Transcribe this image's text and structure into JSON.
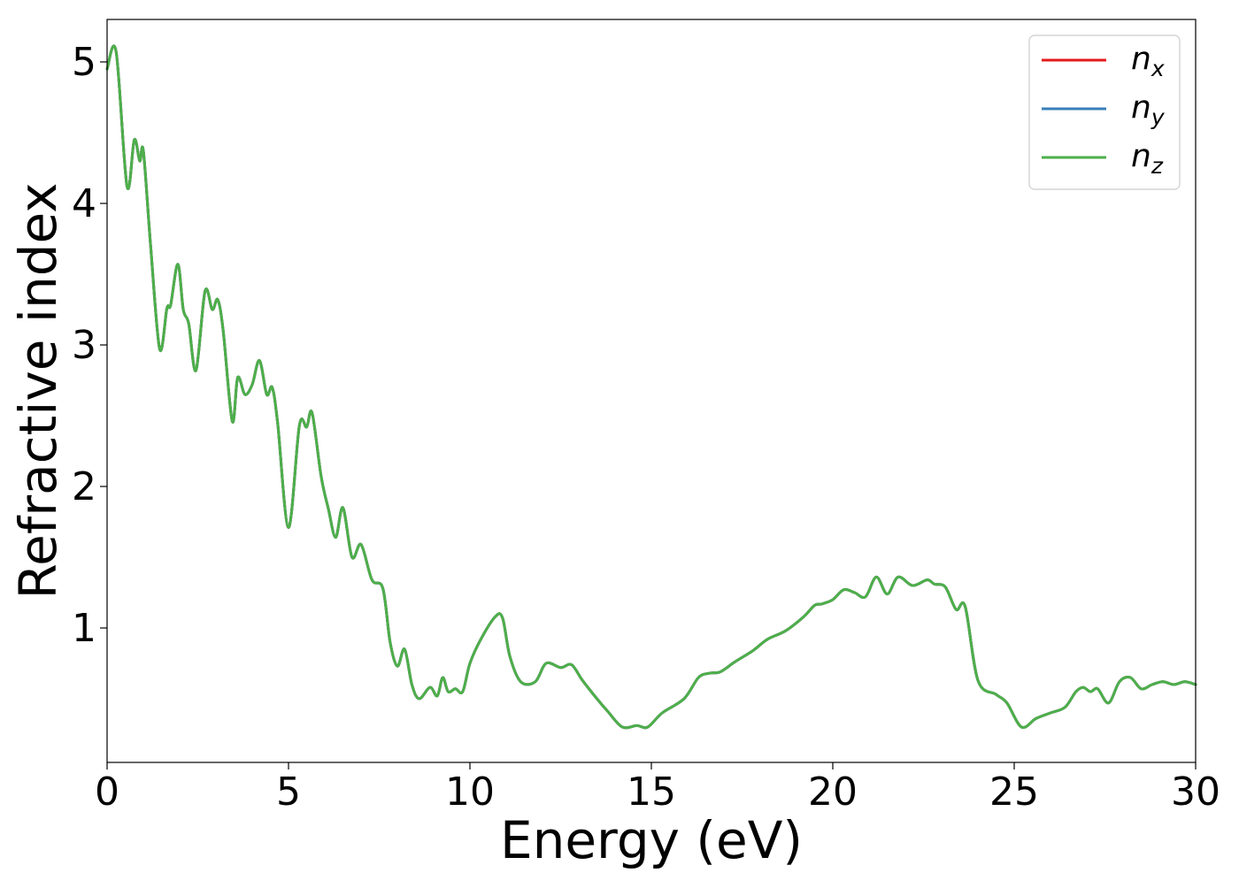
{
  "chart_data": {
    "type": "line",
    "title": "",
    "xlabel": "Energy (eV)",
    "ylabel": "Refractive index",
    "xlim": [
      0,
      30
    ],
    "ylim": [
      0.05,
      5.3
    ],
    "xticks": [
      0,
      5,
      10,
      15,
      20,
      25,
      30
    ],
    "xtick_labels": [
      "0",
      "5",
      "10",
      "15",
      "20",
      "25",
      "30"
    ],
    "yticks": [
      1,
      2,
      3,
      4,
      5
    ],
    "ytick_labels": [
      "1",
      "2",
      "3",
      "4",
      "5"
    ],
    "grid": false,
    "legend_position": "top-right",
    "x": [
      0,
      0.25,
      0.55,
      0.75,
      0.9,
      1.0,
      1.2,
      1.45,
      1.65,
      1.75,
      1.95,
      2.1,
      2.25,
      2.45,
      2.7,
      2.9,
      3.05,
      3.2,
      3.45,
      3.6,
      3.8,
      4.0,
      4.2,
      4.4,
      4.55,
      4.7,
      5.0,
      5.3,
      5.5,
      5.65,
      5.9,
      6.1,
      6.3,
      6.5,
      6.75,
      7.0,
      7.3,
      7.6,
      7.8,
      8.0,
      8.2,
      8.4,
      8.6,
      8.9,
      9.1,
      9.25,
      9.4,
      9.6,
      9.8,
      10.0,
      10.3,
      10.7,
      10.9,
      11.1,
      11.4,
      11.8,
      12.1,
      12.5,
      12.8,
      13.1,
      13.5,
      13.8,
      14.2,
      14.6,
      14.9,
      15.3,
      15.9,
      16.3,
      16.6,
      16.9,
      17.3,
      17.8,
      18.2,
      18.7,
      19.2,
      19.5,
      19.7,
      20.0,
      20.3,
      20.6,
      20.9,
      21.2,
      21.5,
      21.8,
      22.2,
      22.6,
      22.8,
      23.1,
      23.4,
      23.65,
      24.0,
      24.5,
      24.8,
      25.2,
      25.6,
      26.0,
      26.4,
      26.7,
      26.9,
      27.1,
      27.3,
      27.6,
      27.9,
      28.2,
      28.5,
      28.8,
      29.1,
      29.4,
      29.7,
      30.0
    ],
    "series": [
      {
        "name": "n_x",
        "color": "#e41a1c",
        "y": [
          4.95,
          5.07,
          4.12,
          4.45,
          4.3,
          4.37,
          3.7,
          2.97,
          3.26,
          3.28,
          3.57,
          3.25,
          3.15,
          2.82,
          3.38,
          3.25,
          3.32,
          3.1,
          2.46,
          2.77,
          2.65,
          2.72,
          2.89,
          2.65,
          2.7,
          2.45,
          1.71,
          2.43,
          2.42,
          2.52,
          2.07,
          1.84,
          1.64,
          1.85,
          1.5,
          1.59,
          1.34,
          1.28,
          0.9,
          0.73,
          0.85,
          0.6,
          0.5,
          0.58,
          0.52,
          0.65,
          0.55,
          0.57,
          0.55,
          0.75,
          0.92,
          1.08,
          1.07,
          0.8,
          0.62,
          0.62,
          0.75,
          0.72,
          0.74,
          0.63,
          0.5,
          0.41,
          0.3,
          0.31,
          0.3,
          0.4,
          0.5,
          0.65,
          0.68,
          0.69,
          0.76,
          0.84,
          0.92,
          0.98,
          1.08,
          1.16,
          1.17,
          1.2,
          1.27,
          1.25,
          1.22,
          1.36,
          1.24,
          1.36,
          1.3,
          1.34,
          1.31,
          1.29,
          1.13,
          1.15,
          0.63,
          0.53,
          0.47,
          0.3,
          0.36,
          0.4,
          0.44,
          0.55,
          0.58,
          0.55,
          0.57,
          0.47,
          0.62,
          0.65,
          0.57,
          0.6,
          0.62,
          0.6,
          0.62,
          0.6
        ]
      },
      {
        "name": "n_y",
        "color": "#377eb8",
        "y": [
          4.95,
          5.07,
          4.12,
          4.45,
          4.3,
          4.37,
          3.7,
          2.97,
          3.26,
          3.28,
          3.57,
          3.25,
          3.15,
          2.82,
          3.38,
          3.25,
          3.32,
          3.1,
          2.46,
          2.77,
          2.65,
          2.72,
          2.89,
          2.65,
          2.7,
          2.45,
          1.71,
          2.43,
          2.42,
          2.52,
          2.07,
          1.84,
          1.64,
          1.85,
          1.5,
          1.59,
          1.34,
          1.28,
          0.9,
          0.73,
          0.85,
          0.6,
          0.5,
          0.58,
          0.52,
          0.65,
          0.55,
          0.57,
          0.55,
          0.75,
          0.92,
          1.08,
          1.07,
          0.8,
          0.62,
          0.62,
          0.75,
          0.72,
          0.74,
          0.63,
          0.5,
          0.41,
          0.3,
          0.31,
          0.3,
          0.4,
          0.5,
          0.65,
          0.68,
          0.69,
          0.76,
          0.84,
          0.92,
          0.98,
          1.08,
          1.16,
          1.17,
          1.2,
          1.27,
          1.25,
          1.22,
          1.36,
          1.24,
          1.36,
          1.3,
          1.34,
          1.31,
          1.29,
          1.13,
          1.15,
          0.63,
          0.53,
          0.47,
          0.3,
          0.36,
          0.4,
          0.44,
          0.55,
          0.58,
          0.55,
          0.57,
          0.47,
          0.62,
          0.65,
          0.57,
          0.6,
          0.62,
          0.6,
          0.62,
          0.6
        ]
      },
      {
        "name": "n_z",
        "color": "#4daf4a",
        "y": [
          4.95,
          5.07,
          4.12,
          4.45,
          4.3,
          4.37,
          3.7,
          2.97,
          3.26,
          3.28,
          3.57,
          3.25,
          3.15,
          2.82,
          3.38,
          3.25,
          3.32,
          3.1,
          2.46,
          2.77,
          2.65,
          2.72,
          2.89,
          2.65,
          2.7,
          2.45,
          1.71,
          2.43,
          2.42,
          2.52,
          2.07,
          1.84,
          1.64,
          1.85,
          1.5,
          1.59,
          1.34,
          1.28,
          0.9,
          0.73,
          0.85,
          0.6,
          0.5,
          0.58,
          0.52,
          0.65,
          0.55,
          0.57,
          0.55,
          0.75,
          0.92,
          1.08,
          1.07,
          0.8,
          0.62,
          0.62,
          0.75,
          0.72,
          0.74,
          0.63,
          0.5,
          0.41,
          0.3,
          0.31,
          0.3,
          0.4,
          0.5,
          0.65,
          0.68,
          0.69,
          0.76,
          0.84,
          0.92,
          0.98,
          1.08,
          1.16,
          1.17,
          1.2,
          1.27,
          1.25,
          1.22,
          1.36,
          1.24,
          1.36,
          1.3,
          1.34,
          1.31,
          1.29,
          1.13,
          1.15,
          0.63,
          0.53,
          0.47,
          0.3,
          0.36,
          0.4,
          0.44,
          0.55,
          0.58,
          0.55,
          0.57,
          0.47,
          0.62,
          0.65,
          0.57,
          0.6,
          0.62,
          0.6,
          0.62,
          0.6
        ]
      }
    ],
    "legend": [
      {
        "base": "n",
        "sub": "x",
        "color": "#e41a1c"
      },
      {
        "base": "n",
        "sub": "y",
        "color": "#377eb8"
      },
      {
        "base": "n",
        "sub": "z",
        "color": "#4daf4a"
      }
    ]
  }
}
